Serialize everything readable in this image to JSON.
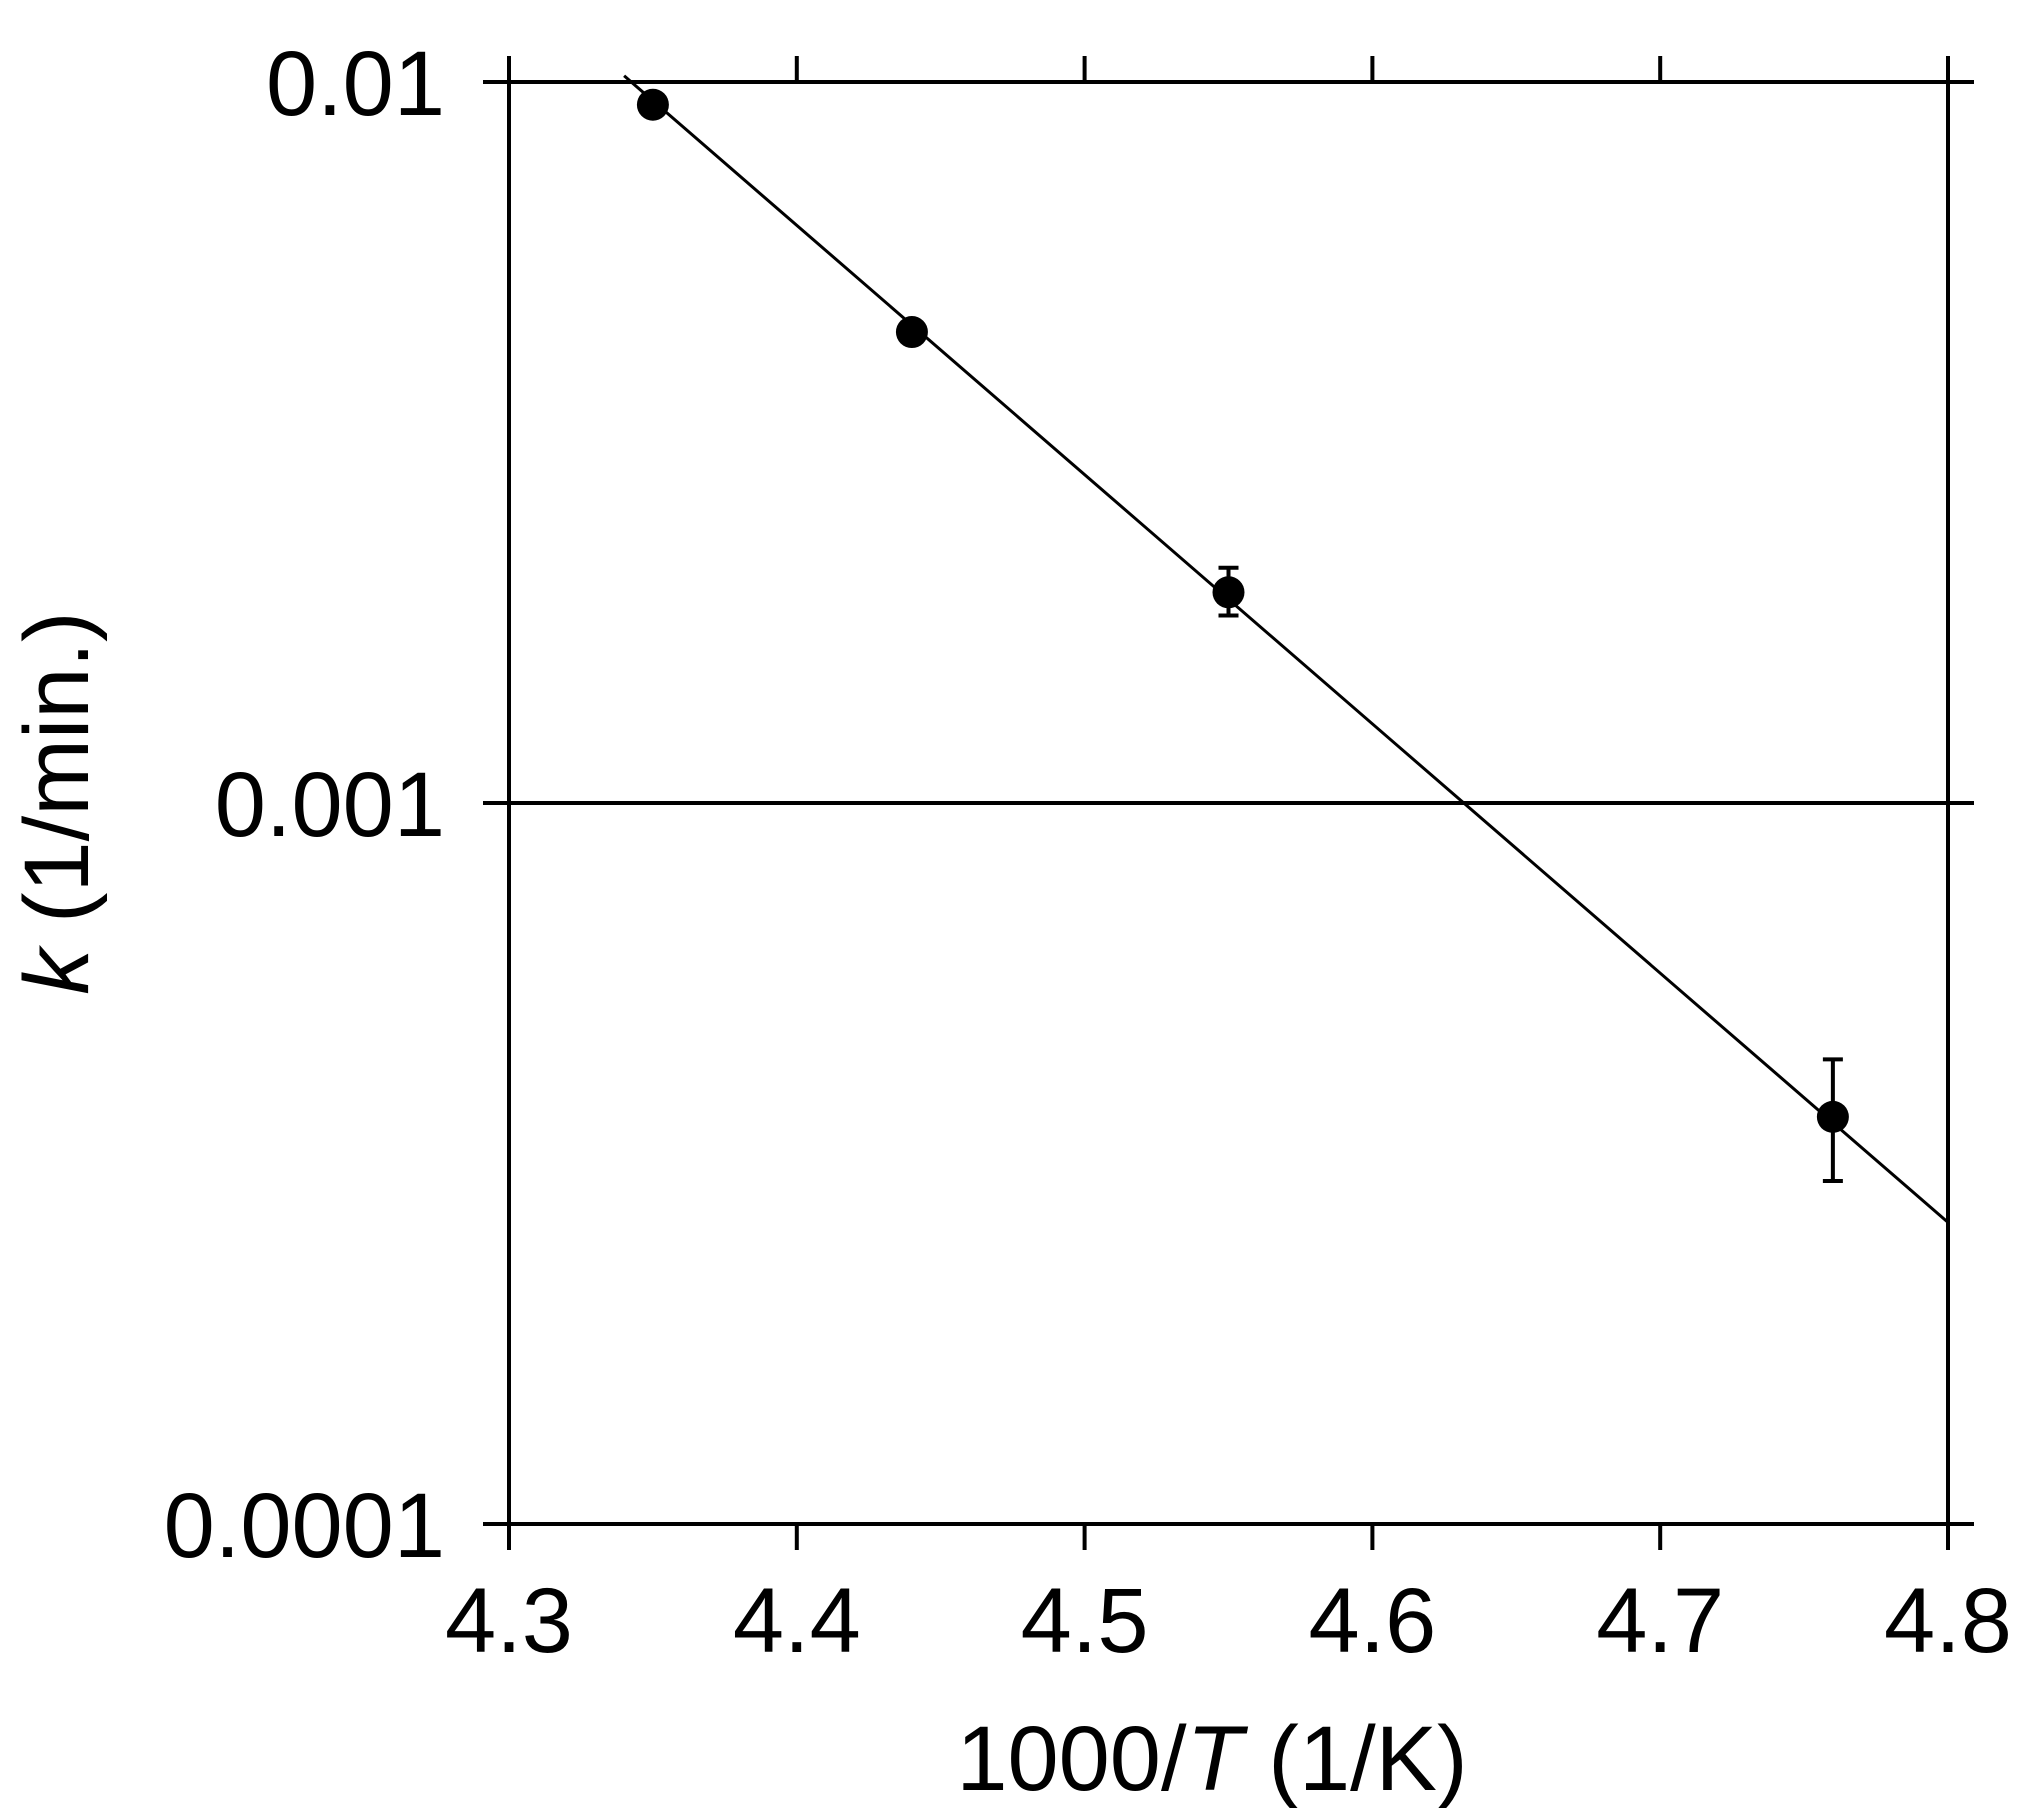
{
  "chart_data": {
    "type": "scatter",
    "title": "",
    "xlabel": {
      "prefix": "1000/",
      "var": "T",
      "suffix": " (1/K)"
    },
    "ylabel": {
      "var": "k",
      "suffix": " (1/min.)"
    },
    "xlim": [
      4.3,
      4.8
    ],
    "ylim": [
      0.0001,
      0.01
    ],
    "yscale": "log",
    "grid": false,
    "x_ticks": [
      {
        "value": 4.3,
        "label": "4.3"
      },
      {
        "value": 4.4,
        "label": "4.4"
      },
      {
        "value": 4.5,
        "label": "4.5"
      },
      {
        "value": 4.6,
        "label": "4.6"
      },
      {
        "value": 4.7,
        "label": "4.7"
      },
      {
        "value": 4.8,
        "label": "4.8"
      }
    ],
    "y_ticks": [
      {
        "value": 0.01,
        "label": "0.01"
      },
      {
        "value": 0.001,
        "label": "0.001"
      },
      {
        "value": 0.0001,
        "label": "0.0001"
      }
    ],
    "points": [
      {
        "x": 4.35,
        "y": 0.0093,
        "err_low": 0.0093,
        "err_high": 0.0093
      },
      {
        "x": 4.44,
        "y": 0.0045,
        "err_low": 0.0045,
        "err_high": 0.0045
      },
      {
        "x": 4.55,
        "y": 0.00196,
        "err_low": 0.00182,
        "err_high": 0.00212
      },
      {
        "x": 4.76,
        "y": 0.000367,
        "err_low": 0.000299,
        "err_high": 0.000441
      }
    ],
    "fit_line": {
      "x": [
        4.34,
        4.8
      ],
      "y": [
        0.0102,
        0.000262
      ]
    }
  }
}
